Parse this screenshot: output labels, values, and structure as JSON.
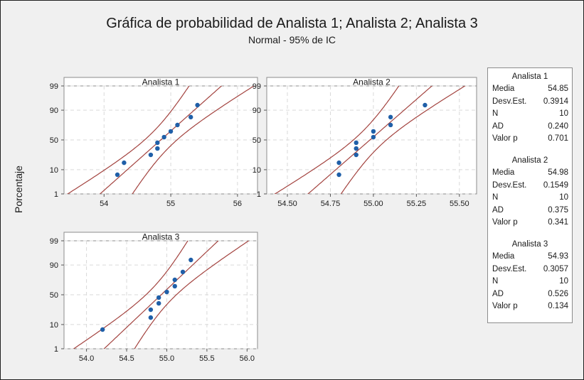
{
  "title": "Gráfica de probabilidad de Analista 1; Analista 2; Analista 3",
  "subtitle": "Normal - 95% de IC",
  "ylabel": "Porcentaje",
  "colors": {
    "points": "#1f5fa8",
    "lines": "#a3433f",
    "panel_bg": "#ffffff",
    "figure_bg": "#f0f0f0",
    "grid": "#d9d9d9"
  },
  "chart_data": [
    {
      "type": "scatter",
      "title": "Analista 1",
      "scale": "normal probability",
      "xlim": [
        53.4,
        56.3
      ],
      "xticks": [
        54,
        55,
        56
      ],
      "xtick_labels": [
        "54",
        "55",
        "56"
      ],
      "ylim_percent": [
        1,
        99
      ],
      "yticks": [
        1,
        10,
        50,
        90,
        99
      ],
      "ytick_labels": [
        "1",
        "10",
        "50",
        "90",
        "99"
      ],
      "points": [
        {
          "x": 54.2,
          "y": 6.7
        },
        {
          "x": 54.3,
          "y": 16.3
        },
        {
          "x": 54.7,
          "y": 26
        },
        {
          "x": 54.8,
          "y": 35.6
        },
        {
          "x": 54.8,
          "y": 45.2
        },
        {
          "x": 54.9,
          "y": 54.8
        },
        {
          "x": 55.0,
          "y": 64.4
        },
        {
          "x": 55.1,
          "y": 74
        },
        {
          "x": 55.3,
          "y": 83.7
        },
        {
          "x": 55.4,
          "y": 93.3
        }
      ],
      "fit": {
        "mean": 54.85,
        "sd": 0.3914,
        "n": 10
      }
    },
    {
      "type": "scatter",
      "title": "Analista 2",
      "scale": "normal probability",
      "xlim": [
        54.38,
        55.6
      ],
      "xticks": [
        54.5,
        54.75,
        55.0,
        55.25,
        55.5
      ],
      "xtick_labels": [
        "54.50",
        "54.75",
        "55.00",
        "55.25",
        "55.50"
      ],
      "ylim_percent": [
        1,
        99
      ],
      "yticks": [
        1,
        10,
        50,
        90,
        99
      ],
      "ytick_labels": [
        "1",
        "10",
        "50",
        "90",
        "99"
      ],
      "points": [
        {
          "x": 54.8,
          "y": 6.7
        },
        {
          "x": 54.8,
          "y": 16.3
        },
        {
          "x": 54.9,
          "y": 26
        },
        {
          "x": 54.9,
          "y": 35.6
        },
        {
          "x": 54.9,
          "y": 45.2
        },
        {
          "x": 55.0,
          "y": 54.8
        },
        {
          "x": 55.0,
          "y": 64.4
        },
        {
          "x": 55.1,
          "y": 74
        },
        {
          "x": 55.1,
          "y": 83.7
        },
        {
          "x": 55.3,
          "y": 93.3
        }
      ],
      "fit": {
        "mean": 54.98,
        "sd": 0.1549,
        "n": 10
      }
    },
    {
      "type": "scatter",
      "title": "Analista 3",
      "scale": "normal probability",
      "xlim": [
        53.72,
        56.13
      ],
      "xticks": [
        54.0,
        54.5,
        55.0,
        55.5,
        56.0
      ],
      "xtick_labels": [
        "54.0",
        "54.5",
        "55.0",
        "55.5",
        "56.0"
      ],
      "ylim_percent": [
        1,
        99
      ],
      "yticks": [
        1,
        10,
        50,
        90,
        99
      ],
      "ytick_labels": [
        "1",
        "10",
        "50",
        "90",
        "99"
      ],
      "points": [
        {
          "x": 54.2,
          "y": 6.7
        },
        {
          "x": 54.8,
          "y": 16.3
        },
        {
          "x": 54.8,
          "y": 26
        },
        {
          "x": 54.9,
          "y": 35.6
        },
        {
          "x": 54.9,
          "y": 45.2
        },
        {
          "x": 55.0,
          "y": 54.8
        },
        {
          "x": 55.1,
          "y": 64.4
        },
        {
          "x": 55.1,
          "y": 74
        },
        {
          "x": 55.2,
          "y": 83.7
        },
        {
          "x": 55.3,
          "y": 93.3
        }
      ],
      "fit": {
        "mean": 54.93,
        "sd": 0.3057,
        "n": 10
      }
    }
  ],
  "legend": [
    {
      "title": "Analista 1",
      "rows": [
        {
          "label": "Media",
          "value": "54.85"
        },
        {
          "label": "Desv.Est.",
          "value": "0.3914"
        },
        {
          "label": "N",
          "value": "10"
        },
        {
          "label": "AD",
          "value": "0.240"
        },
        {
          "label": "Valor p",
          "value": "0.701"
        }
      ]
    },
    {
      "title": "Analista 2",
      "rows": [
        {
          "label": "Media",
          "value": "54.98"
        },
        {
          "label": "Desv.Est.",
          "value": "0.1549"
        },
        {
          "label": "N",
          "value": "10"
        },
        {
          "label": "AD",
          "value": "0.375"
        },
        {
          "label": "Valor p",
          "value": "0.341"
        }
      ]
    },
    {
      "title": "Analista 3",
      "rows": [
        {
          "label": "Media",
          "value": "54.93"
        },
        {
          "label": "Desv.Est.",
          "value": "0.3057"
        },
        {
          "label": "N",
          "value": "10"
        },
        {
          "label": "AD",
          "value": "0.526"
        },
        {
          "label": "Valor p",
          "value": "0.134"
        }
      ]
    }
  ]
}
